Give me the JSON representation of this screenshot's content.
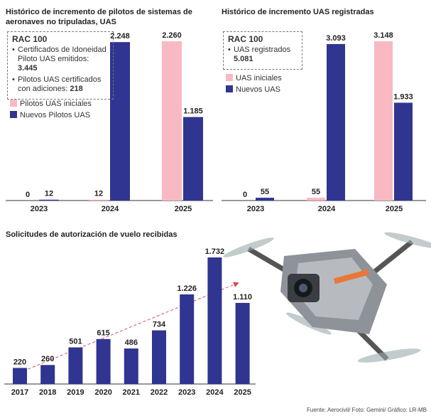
{
  "chart_data": [
    {
      "type": "bar",
      "title": "Histórico de incremento de pilotos de sistemas de aeronaves no tripuladas, UAS",
      "categories": [
        "2023",
        "2024",
        "2025"
      ],
      "series": [
        {
          "name": "Pilotos UAS iniciales",
          "color": "#f8b9c3",
          "values": [
            0,
            12,
            2260
          ],
          "value_labels": [
            "0",
            "12",
            "2.260"
          ]
        },
        {
          "name": "Nuevos Pilotos UAS",
          "color": "#2f3590",
          "values": [
            12,
            2248,
            1185
          ],
          "value_labels": [
            "12",
            "2.248",
            "1.185"
          ]
        }
      ],
      "notes": {
        "heading": "RAC 100",
        "items": [
          {
            "text": "Certificados de Idoneidad Piloto UAS emitidos:",
            "value": "3.445"
          },
          {
            "text": "Pilotos UAS certificados con adiciones:",
            "value": "218"
          }
        ]
      }
    },
    {
      "type": "bar",
      "title": "Histórico de incremento UAS registradas",
      "categories": [
        "2023",
        "2024",
        "2025"
      ],
      "series": [
        {
          "name": "UAS iniciales",
          "color": "#f8b9c3",
          "values": [
            0,
            55,
            3148
          ],
          "value_labels": [
            "0",
            "55",
            "3.148"
          ]
        },
        {
          "name": "Nuevos UAS",
          "color": "#2f3590",
          "values": [
            55,
            3093,
            1933
          ],
          "value_labels": [
            "55",
            "3.093",
            "1.933"
          ]
        }
      ],
      "notes": {
        "heading": "RAC 100",
        "items": [
          {
            "text": "UAS registrados",
            "value": "5.081"
          }
        ]
      }
    },
    {
      "type": "bar",
      "title": "Solicitudes de autorización de vuelo recibidas",
      "categories": [
        "2017",
        "2018",
        "2019",
        "2020",
        "2021",
        "2022",
        "2023",
        "2024",
        "2025"
      ],
      "color": "#2f3590",
      "values": [
        220,
        260,
        501,
        615,
        486,
        734,
        1226,
        1732,
        1110
      ],
      "value_labels": [
        "220",
        "260",
        "501",
        "615",
        "486",
        "734",
        "1.226",
        "1.732",
        "1.110"
      ]
    }
  ],
  "source": "Fuente: Aerocivil/ Foto: Gemini/ Gráfico: LR-MB"
}
